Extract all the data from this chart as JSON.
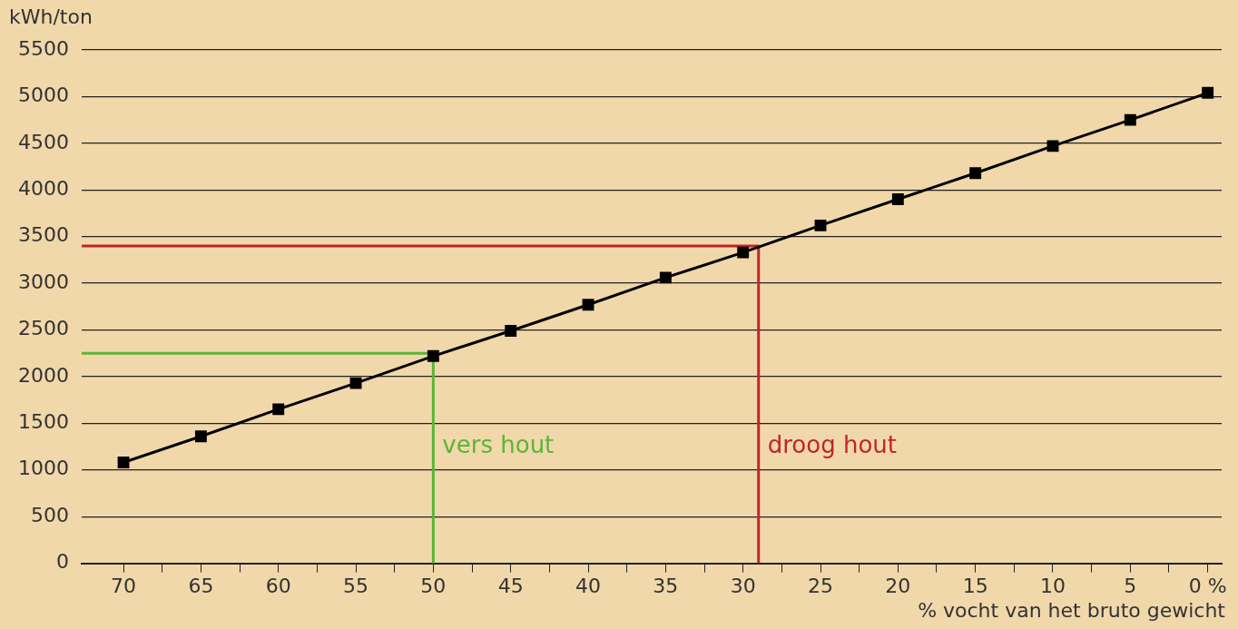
{
  "chart_data": {
    "type": "line",
    "ylabel": "kWh/ton",
    "xlabel": "% vocht van het bruto gewicht",
    "xlim": [
      72.7,
      -0.9
    ],
    "ylim": [
      0,
      5500
    ],
    "xticks": [
      70,
      {
        "value": 67.5,
        "label": null
      },
      65,
      {
        "value": 62.5,
        "label": null
      },
      60,
      {
        "value": 57.5,
        "label": null
      },
      55,
      {
        "value": 52.5,
        "label": null
      },
      50,
      {
        "value": 47.5,
        "label": null
      },
      45,
      {
        "value": 42.5,
        "label": null
      },
      40,
      {
        "value": 37.5,
        "label": null
      },
      35,
      {
        "value": 32.5,
        "label": null
      },
      30,
      {
        "value": 27.5,
        "label": null
      },
      25,
      {
        "value": 22.5,
        "label": null
      },
      20,
      {
        "value": 17.5,
        "label": null
      },
      15,
      {
        "value": 12.5,
        "label": null
      },
      10,
      {
        "value": 7.5,
        "label": null
      },
      5,
      {
        "value": 2.5,
        "label": null
      },
      {
        "value": 0,
        "label": "0 %"
      }
    ],
    "yticks": [
      0,
      500,
      1000,
      1500,
      2000,
      2500,
      3000,
      3500,
      4000,
      4500,
      5000,
      5500
    ],
    "grid": "y",
    "legend": false,
    "marker": "square",
    "line_style": "solid",
    "series": [
      {
        "color": "#000000",
        "x": [
          70,
          65,
          60,
          55,
          50,
          45,
          40,
          35,
          30,
          25,
          20,
          15,
          10,
          5,
          0
        ],
        "values": [
          1080,
          1360,
          1650,
          1930,
          2220,
          2490,
          2770,
          3060,
          3330,
          3620,
          3900,
          4180,
          4470,
          4750,
          5040
        ]
      },
      {
        "color": "#5cb43a",
        "marker": "none",
        "x": [
          72.7,
          50,
          50
        ],
        "values": [
          2250,
          2250,
          0
        ]
      },
      {
        "color": "#c0242e",
        "marker": "none",
        "x": [
          72.7,
          29,
          29
        ],
        "values": [
          3400,
          3400,
          0
        ]
      }
    ],
    "annotations": [
      {
        "text": "vers hout",
        "x": 50,
        "y": 1250
      },
      {
        "text": "droog hout",
        "x": 29,
        "y": 1250
      }
    ]
  }
}
